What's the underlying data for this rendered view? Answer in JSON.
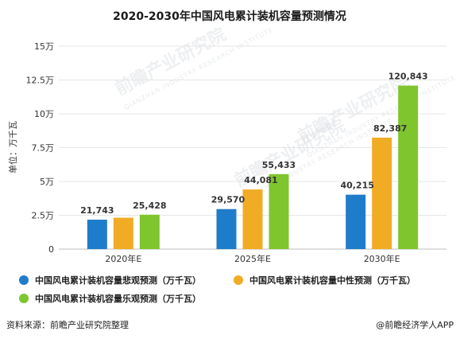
{
  "chart_data": {
    "type": "bar",
    "title": "2020-2030年中国风电累计装机容量预测情况",
    "ylabel": "单位：万千瓦",
    "xlabel": "",
    "categories": [
      "2020年E",
      "2025年E",
      "2030年E"
    ],
    "yticks": [
      "0",
      "2.5万",
      "5万",
      "7.5万",
      "10万",
      "12.5万",
      "15万"
    ],
    "ylim": [
      0,
      150000
    ],
    "grid": true,
    "legend_position": "bottom",
    "series": [
      {
        "name": "中国风电累计装机容量悲观预测（万千瓦）",
        "color": "#1f7ccb",
        "values": [
          21743,
          29570,
          40215
        ],
        "labels": [
          "21,743",
          "29,570",
          "40,215"
        ]
      },
      {
        "name": "中国风电累计装机容量中性预测（万千瓦）",
        "color": "#f0ac25",
        "values": [
          23200,
          44081,
          82387
        ],
        "labels": [
          "",
          "44,081",
          "82,387"
        ]
      },
      {
        "name": "中国风电累计装机容量乐观预测（万千瓦）",
        "color": "#7fc52e",
        "values": [
          25428,
          55433,
          120843
        ],
        "labels": [
          "25,428",
          "55,433",
          "120,843"
        ]
      }
    ]
  },
  "footer": {
    "source": "资料来源：前瞻产业研究院整理",
    "brand": "@前瞻经济学人APP"
  },
  "watermark": {
    "text": "前瞻产业研究院",
    "sub": "QIANZHAN INDUSTRY RESEARCH INSTITUTE"
  }
}
